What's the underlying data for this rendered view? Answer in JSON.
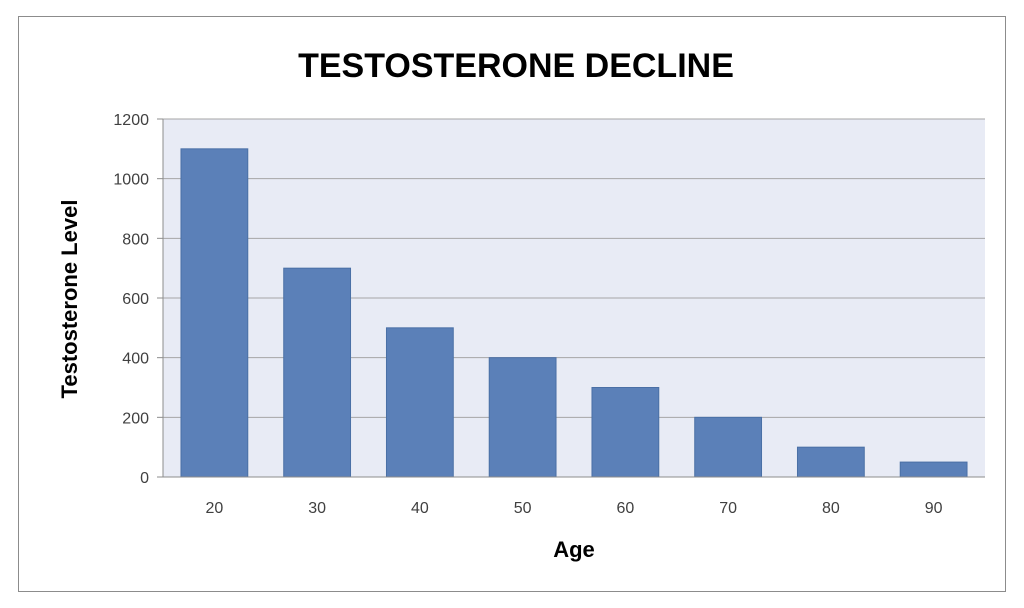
{
  "chart_data": {
    "type": "bar",
    "title": "TESTOSTERONE DECLINE",
    "xlabel": "Age",
    "ylabel": "Testosterone Level",
    "categories": [
      "20",
      "30",
      "40",
      "50",
      "60",
      "70",
      "80",
      "90"
    ],
    "values": [
      1100,
      700,
      500,
      400,
      300,
      200,
      100,
      50
    ],
    "ylim": [
      0,
      1200
    ],
    "yticks": [
      0,
      200,
      400,
      600,
      800,
      1000,
      1200
    ],
    "grid": true,
    "legend": "none",
    "colors": {
      "bar": "#5b80b8",
      "bar_edge": "#4a6fa5",
      "plot_bg": "#e8ebf5",
      "grid": "#a6a6a6",
      "axis": "#8c8c8c"
    }
  }
}
